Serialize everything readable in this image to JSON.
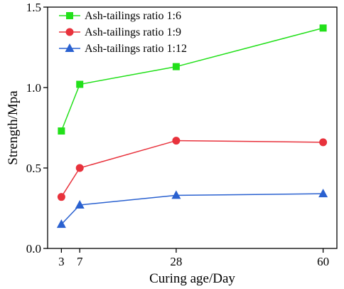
{
  "chart_data": {
    "type": "line",
    "xlabel": "Curing age/Day",
    "ylabel": "Strength/Mpa",
    "x": [
      3,
      7,
      28,
      60
    ],
    "xticks": [
      3,
      7,
      28,
      60
    ],
    "yticks": [
      0.0,
      0.5,
      1.0,
      1.5
    ],
    "ytick_labels": [
      "0.0",
      "0.5",
      "1.0",
      "1.5"
    ],
    "xlim": [
      0,
      63
    ],
    "ylim": [
      0,
      1.5
    ],
    "grid": false,
    "legend_position": "top-left",
    "series": [
      {
        "name": "Ash-tailings ratio 1:6",
        "color": "#22e01a",
        "marker": "square",
        "values": [
          0.73,
          1.02,
          1.13,
          1.37
        ]
      },
      {
        "name": "Ash-tailings ratio 1:9",
        "color": "#e8323c",
        "marker": "circle",
        "values": [
          0.32,
          0.5,
          0.67,
          0.66
        ]
      },
      {
        "name": "Ash-tailings ratio 1:12",
        "color": "#2a61d0",
        "marker": "triangle",
        "values": [
          0.15,
          0.27,
          0.33,
          0.34
        ]
      }
    ]
  }
}
